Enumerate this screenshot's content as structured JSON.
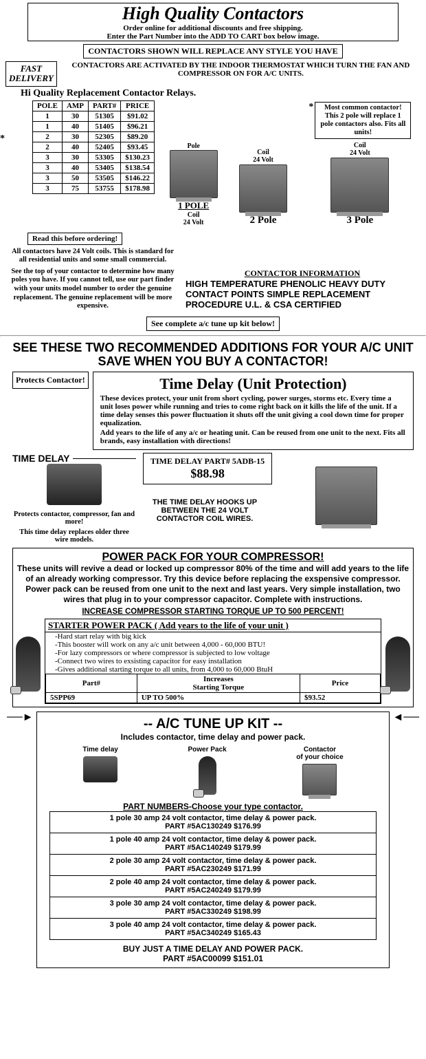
{
  "header": {
    "title": "High Quality Contactors",
    "sub1": "Order online for additional discounts and free shipping.",
    "sub2": "Enter the Part Number into the ADD TO CART box below image."
  },
  "banner": "CONTACTORS SHOWN WILL REPLACE ANY STYLE YOU HAVE",
  "fast": "FAST\nDELIVERY",
  "activated": "CONTACTORS ARE ACTIVATED BY THE INDOOR THERMOSTAT WHICH TURN THE FAN AND COMPRESSOR ON FOR A/C UNITS.",
  "section_title": "Hi Quality Replacement Contactor Relays.",
  "parts_headers": [
    "POLE",
    "AMP",
    "PART#",
    "PRICE"
  ],
  "parts_rows": [
    [
      "1",
      "30",
      "51305",
      "$91.02"
    ],
    [
      "1",
      "40",
      "51405",
      "$96.21"
    ],
    [
      "2",
      "30",
      "52305",
      "$89.20"
    ],
    [
      "2",
      "40",
      "52405",
      "$93.45"
    ],
    [
      "3",
      "30",
      "53305",
      "$130.23"
    ],
    [
      "3",
      "40",
      "53405",
      "$138.54"
    ],
    [
      "3",
      "50",
      "53505",
      "$146.22"
    ],
    [
      "3",
      "75",
      "53755",
      "$178.98"
    ]
  ],
  "most_common": "Most common contactor! This 2 pole will replace 1 pole contactors also. Fits all units!",
  "pole1": {
    "name": "1 POLE",
    "coil": "Coil\n24 Volt",
    "top": "Pole"
  },
  "pole2": {
    "name": "2 Pole",
    "coil": "Coil\n24 Volt"
  },
  "pole3": {
    "name": "3 Pole",
    "coil": "Coil\n24 Volt"
  },
  "read_before": "Read this before ordering!",
  "notes1": "All contactors have 24 Volt coils. This is standard for all residential units and some small commercial.",
  "notes2": "See the top of your contactor to determine how many poles you have. If you cannot tell, use our part finder with your units model number to order the genuine replacement. The genuine replacement will be more expensive.",
  "contactor_info_hdr": "CONTACTOR INFORMATION",
  "contactor_info_body": "HIGH TEMPERATURE PHENOLIC HEAVY DUTY CONTACT POINTS SIMPLE REPLACEMENT PROCEDURE U.L. & CSA CERTIFIED",
  "see_kit": "See complete a/c tune up kit below!",
  "big_heading": "SEE THESE TWO RECOMMENDED ADDITIONS FOR YOUR A/C UNIT SAVE WHEN YOU BUY A CONTACTOR!",
  "protects": "Protects Contactor!",
  "td": {
    "title": "Time Delay    (Unit Protection)",
    "body": "These devices protect, your unit from short cycling, power surges, storms etc. Every time a unit loses power while running and tries to come right back on it kills the life of the unit. If a time delay senses this power fluctuation it shuts off the unit giving a cool down time for proper equalization.",
    "body2": "Add years to the life of any a/c or heating unit. Can be reused from one unit to the next. Fits all brands, easy installation with directions!",
    "label": "TIME DELAY",
    "part_label": "TIME DELAY PART# 5ADB-15",
    "price": "$88.98",
    "note1": "Protects contactor, compressor, fan and more!",
    "note2": "This time delay replaces older three wire models.",
    "hook": "THE TIME DELAY HOOKS UP BETWEEN THE 24 VOLT CONTACTOR COIL WIRES."
  },
  "pp": {
    "title": "POWER PACK FOR YOUR COMPRESSOR!",
    "body": "These units will revive a dead or locked up compressor 80% of the time and will add years to the life of an already working compressor. Try this device before replacing the exspensive compressor. Power pack can be reused from one unit to the next and last years. Very simple installation, two wires that plug in to your compressor capacitor. Complete with instructions.",
    "inc": "INCREASE COMPRESSOR STARTING TORQUE UP TO 500 PERCENT!",
    "spp_hdr": "STARTER POWER PACK",
    "spp_add": "( Add years to the life of your unit )",
    "spp_list": [
      "-Hard start relay with big kick",
      "-This booster will work on any a/c unit between 4,000 - 60,000 BTU!",
      "-For lazy compressors or where compressor is subjected to low voltage",
      "-Connect two wires to exsisting capacitor for easy installation",
      "-Gives additional starting torque to all units, from 4,000 to 60,000 BtuH"
    ],
    "spp_table_hdr": [
      "Part#",
      "Increases\nStarting Torque",
      "Price"
    ],
    "spp_table_row": [
      "5SPP69",
      "UP TO 500%",
      "$93.52"
    ]
  },
  "kit": {
    "title": "--  A/C TUNE UP KIT --",
    "sub": "Includes contactor, time delay and power pack.",
    "imgs": [
      "Time delay",
      "Power Pack",
      "Contactor\nof your choice"
    ],
    "partnum": "PART NUMBERS-Choose your type contactor.",
    "rows": [
      "1 pole 30 amp 24 volt contactor, time delay & power pack.\nPART #5AC130249 $176.99",
      "1 pole 40 amp 24 volt contactor, time delay & power pack.\nPART #5AC140249 $179.99",
      "2 pole 30 amp 24 volt contactor, time delay & power pack.\nPART #5AC230249 $171.99",
      "2 pole 40 amp 24 volt contactor, time delay & power pack.\nPART #5AC240249 $179.99",
      "3 pole 30 amp 24 volt contactor, time delay & power pack.\nPART #5AC330249 $198.99",
      "3 pole 40 amp 24 volt contactor, time delay & power pack.\nPART #5AC340249 $165.43"
    ],
    "buy": "BUY JUST A TIME DELAY AND POWER PACK.\nPART #5AC00099  $151.01"
  }
}
